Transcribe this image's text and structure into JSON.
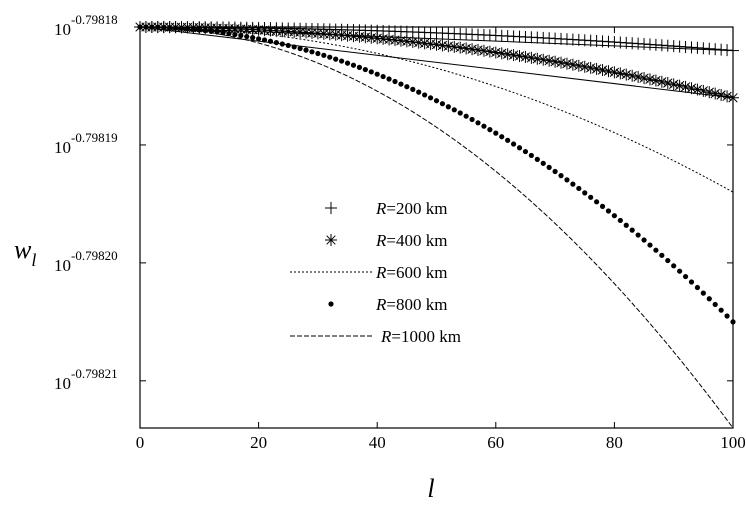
{
  "chart_data": {
    "type": "line",
    "xlabel": "l",
    "ylabel": "w_l",
    "ylabel_base": "w",
    "ylabel_sub": "l",
    "xlim": [
      0,
      100
    ],
    "ylim": [
      -0.798214,
      -0.79818
    ],
    "yscale": "log",
    "grid": false,
    "legend_position": "center-left",
    "x_ticks": [
      0,
      20,
      40,
      60,
      80,
      100
    ],
    "y_ticks": [
      {
        "base": "10",
        "exponent": "-0.79818",
        "value": -0.79818
      },
      {
        "base": "10",
        "exponent": "-0.79819",
        "value": -0.79819
      },
      {
        "base": "10",
        "exponent": "-0.79820",
        "value": -0.7982
      },
      {
        "base": "10",
        "exponent": "-0.79821",
        "value": -0.79821
      }
    ],
    "series": [
      {
        "name": "R=200 km",
        "var": "R",
        "rest": "=200 km",
        "marker": "plus",
        "line": "none",
        "y_start": -0.79818,
        "y_end": -0.798182
      },
      {
        "name": "R=400 km",
        "var": "R",
        "rest": "=400 km",
        "marker": "star",
        "line": "none",
        "y_start": -0.79818,
        "y_end": -0.798186
      },
      {
        "name": "R=600 km",
        "var": "R",
        "rest": "=600 km",
        "marker": "none",
        "line": "dotted",
        "y_start": -0.79818,
        "y_end": -0.798194
      },
      {
        "name": "R=800 km",
        "var": "R",
        "rest": "=800 km",
        "marker": "dot",
        "line": "none",
        "y_start": -0.79818,
        "y_end": -0.798205
      },
      {
        "name": "R=1000 km",
        "var": "R",
        "rest": "=1000 km",
        "marker": "none",
        "line": "dashed",
        "y_start": -0.79818,
        "y_end": -0.798214
      }
    ]
  }
}
